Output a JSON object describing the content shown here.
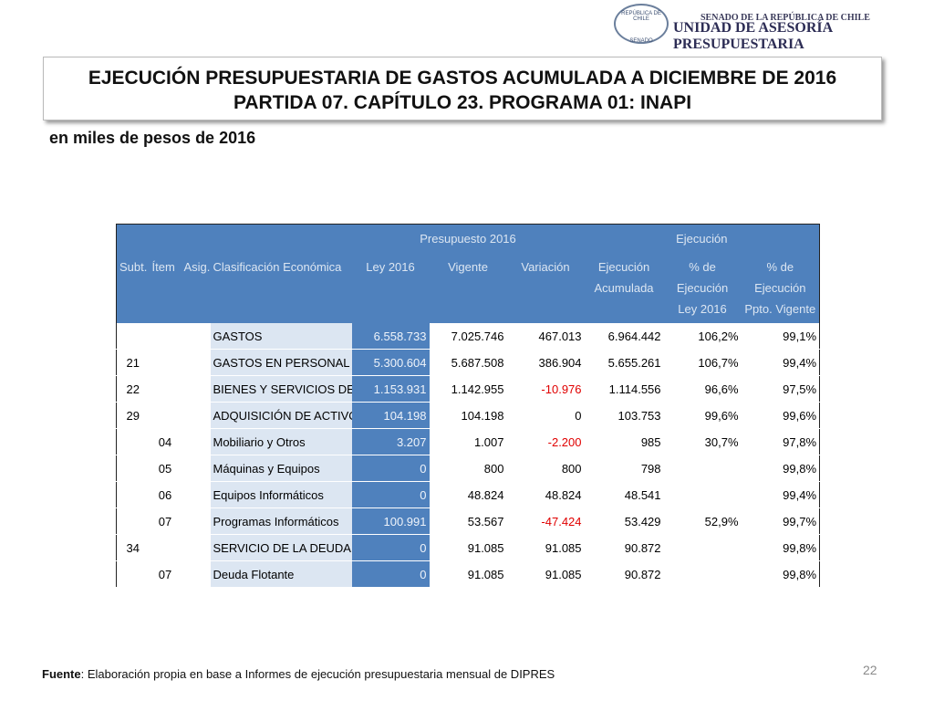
{
  "header": {
    "seal_top": "REPÚBLICA DE CHILE",
    "seal_bottom": "SENADO",
    "org_top": "SENADO DE LA REPÚBLICA DE CHILE",
    "org_main": "UNIDAD DE ASESORÍA PRESUPUESTARIA"
  },
  "title": {
    "line1": "EJECUCIÓN PRESUPUESTARIA DE GASTOS ACUMULADA A DICIEMBRE DE 2016",
    "line2": "PARTIDA 07. CAPÍTULO 23. PROGRAMA 01: INAPI"
  },
  "subtitle": "en miles de pesos de 2016",
  "table": {
    "groups": [
      "Presupuesto 2016",
      "Ejecución"
    ],
    "columns": [
      "Subt.",
      "Ítem",
      "Asig.",
      "Clasificación Económica",
      "Ley 2016",
      "Vigente",
      "Variación",
      "Ejecución Acumulada",
      "% de Ejecución Ley 2016",
      "% de Ejecución Ppto. Vigente"
    ],
    "rows": [
      [
        null,
        null,
        null,
        "GASTOS",
        "6.558.733",
        "7.025.746",
        "467.013",
        "6.964.442",
        "106,2%",
        "99,1%"
      ],
      [
        "21",
        null,
        null,
        "GASTOS EN PERSONAL",
        "5.300.604",
        "5.687.508",
        "386.904",
        "5.655.261",
        "106,7%",
        "99,4%"
      ],
      [
        "22",
        null,
        null,
        "BIENES Y SERVICIOS DE",
        "1.153.931",
        "1.142.955",
        "-10.976",
        "1.114.556",
        "96,6%",
        "97,5%"
      ],
      [
        "29",
        null,
        null,
        "ADQUISICIÓN DE ACTIVOS",
        "104.198",
        "104.198",
        "0",
        "103.753",
        "99,6%",
        "99,6%"
      ],
      [
        null,
        "04",
        null,
        "Mobiliario y Otros",
        "3.207",
        "1.007",
        "-2.200",
        "985",
        "30,7%",
        "97,8%"
      ],
      [
        null,
        "05",
        null,
        "Máquinas y Equipos",
        "0",
        "800",
        "800",
        "798",
        null,
        "99,8%"
      ],
      [
        null,
        "06",
        null,
        "Equipos Informáticos",
        "0",
        "48.824",
        "48.824",
        "48.541",
        null,
        "99,4%"
      ],
      [
        null,
        "07",
        null,
        "Programas Informáticos",
        "100.991",
        "53.567",
        "-47.424",
        "53.429",
        "52,9%",
        "99,7%"
      ],
      [
        "34",
        null,
        null,
        "SERVICIO DE LA DEUDA",
        "0",
        "91.085",
        "91.085",
        "90.872",
        null,
        "99,8%"
      ],
      [
        null,
        "07",
        null,
        "Deuda Flotante",
        "0",
        "91.085",
        "91.085",
        "90.872",
        null,
        "99,8%"
      ]
    ]
  },
  "footer": {
    "source_label": "Fuente",
    "source_text": ": Elaboración propia en base  a Informes de ejecución presupuestaria mensual de DIPRES",
    "page": "22"
  }
}
